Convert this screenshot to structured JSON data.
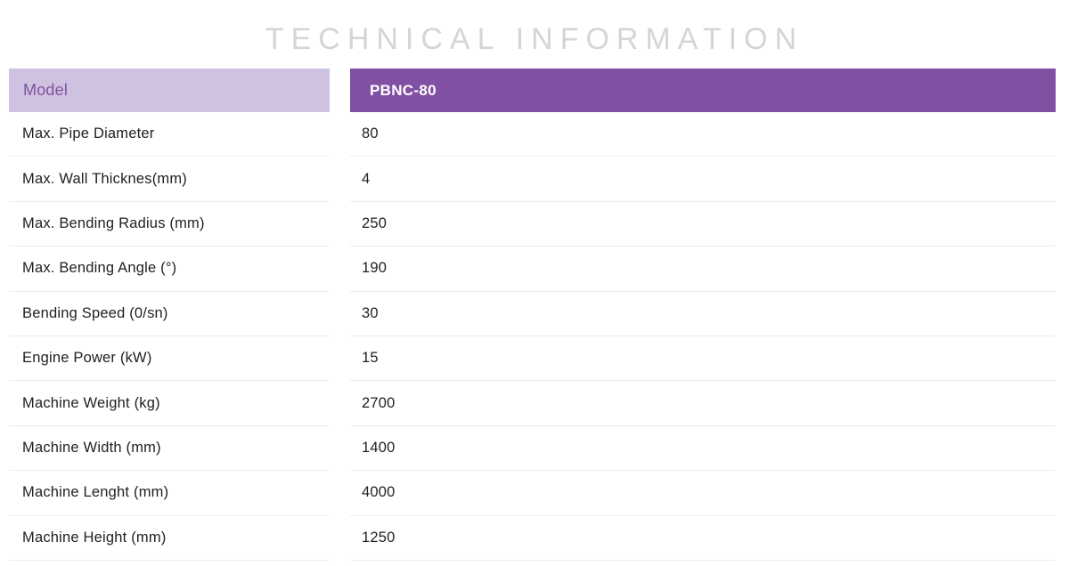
{
  "title": "TECHNICAL INFORMATION",
  "colors": {
    "header_dark": "#8150a2",
    "header_light": "#cfc2e0",
    "header_light_text": "#8150a2",
    "title_text": "#d5d5d5",
    "row_text": "#1f1f1f",
    "border": "#ececec",
    "value_header_text": "#ffffff"
  },
  "table": {
    "label_header": "Model",
    "value_header": "PBNC-80",
    "rows": [
      {
        "label": "Max. Pipe Diameter",
        "value": "80"
      },
      {
        "label": "Max. Wall Thicknes(mm)",
        "value": "4"
      },
      {
        "label": "Max. Bending Radius (mm)",
        "value": "250"
      },
      {
        "label": "Max. Bending Angle (°)",
        "value": "190"
      },
      {
        "label": "Bending Speed (0/sn)",
        "value": "30"
      },
      {
        "label": "Engine Power (kW)",
        "value": "15"
      },
      {
        "label": "Machine Weight (kg)",
        "value": "2700"
      },
      {
        "label": "Machine Width (mm)",
        "value": "1400"
      },
      {
        "label": "Machine Lenght (mm)",
        "value": "4000"
      },
      {
        "label": "Machine Height (mm)",
        "value": "1250"
      }
    ]
  }
}
